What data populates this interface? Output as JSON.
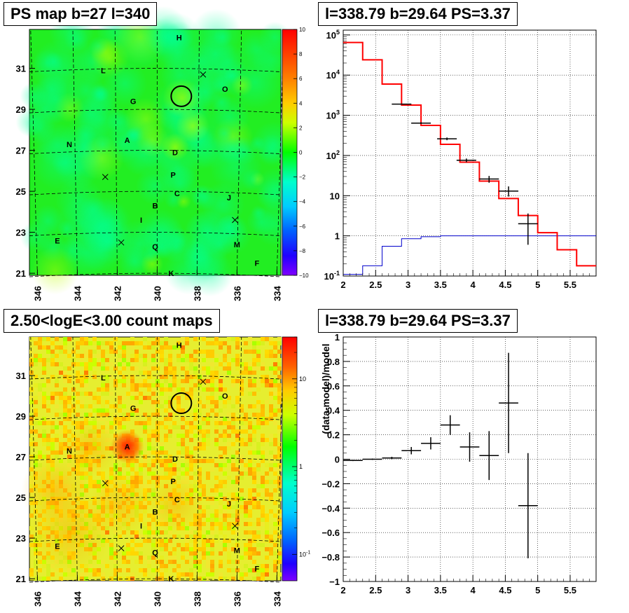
{
  "panels": {
    "top_left_title": "PS map b=27 l=340",
    "top_right_title": "l=338.79 b=29.64 PS=3.37",
    "bottom_left_title": "2.50<logE<3.00 count maps",
    "bottom_right_title": "l=338.79 b=29.64 PS=3.37"
  },
  "chart_data": [
    {
      "type": "heatmap",
      "title": "PS map b=27 l=340",
      "x_ticks": [
        "346",
        "344",
        "342",
        "340",
        "338",
        "336",
        "334"
      ],
      "y_ticks": [
        "21",
        "23",
        "25",
        "27",
        "29",
        "31"
      ],
      "xlim": [
        346.4,
        333.8
      ],
      "ylim": [
        20.9,
        32.9
      ],
      "colorbar_ticks": [
        "10",
        "8",
        "6",
        "4",
        "2",
        "0",
        "−2",
        "−4",
        "−6",
        "−8",
        "−10"
      ],
      "colorbar_range": [
        -10,
        10
      ],
      "source_labels": [
        {
          "text": "H",
          "l": 338.9,
          "b": 32.5
        },
        {
          "text": "L",
          "l": 342.7,
          "b": 30.9
        },
        {
          "text": "O",
          "l": 336.6,
          "b": 30.0
        },
        {
          "text": "G",
          "l": 341.2,
          "b": 29.4
        },
        {
          "text": "N",
          "l": 344.4,
          "b": 27.3
        },
        {
          "text": "A",
          "l": 341.5,
          "b": 27.5
        },
        {
          "text": "D",
          "l": 339.1,
          "b": 26.9
        },
        {
          "text": "P",
          "l": 339.2,
          "b": 25.8
        },
        {
          "text": "C",
          "l": 339.0,
          "b": 24.9
        },
        {
          "text": "J",
          "l": 336.4,
          "b": 24.7
        },
        {
          "text": "B",
          "l": 340.1,
          "b": 24.3
        },
        {
          "text": "I",
          "l": 340.8,
          "b": 23.6
        },
        {
          "text": "E",
          "l": 345.0,
          "b": 22.6
        },
        {
          "text": "Q",
          "l": 340.1,
          "b": 22.3
        },
        {
          "text": "M",
          "l": 336.0,
          "b": 22.4
        },
        {
          "text": "F",
          "l": 335.0,
          "b": 21.5
        },
        {
          "text": "K",
          "l": 339.3,
          "b": 21.0
        }
      ],
      "cross_markers": [
        {
          "l": 337.7,
          "b": 30.7
        },
        {
          "l": 342.6,
          "b": 25.7
        },
        {
          "l": 336.1,
          "b": 23.6
        },
        {
          "l": 341.8,
          "b": 22.5
        }
      ],
      "circle": {
        "l": 338.79,
        "b": 29.64
      }
    },
    {
      "type": "line",
      "title": "l=338.79 b=29.64 PS=3.37",
      "xlim": [
        2,
        5.9
      ],
      "ylim": [
        0.1,
        100000
      ],
      "y_scale": "log",
      "x_ticks": [
        "2",
        "2.5",
        "3",
        "3.5",
        "4",
        "4.5",
        "5",
        "5.5"
      ],
      "y_ticks": [
        "10^-1",
        "1",
        "10",
        "10^2",
        "10^3",
        "10^4",
        "10^5"
      ],
      "grid": true,
      "model_red": {
        "edges": [
          2.0,
          2.3,
          2.6,
          2.9,
          3.2,
          3.5,
          3.8,
          4.1,
          4.4,
          4.7,
          5.0,
          5.3,
          5.6,
          5.9
        ],
        "values": [
          65000,
          24000,
          6000,
          1800,
          560,
          190,
          68,
          23,
          8.5,
          3.2,
          1.2,
          0.45,
          0.18
        ]
      },
      "background_blue": {
        "edges": [
          2.0,
          2.3,
          2.6,
          2.9,
          3.2,
          3.5,
          3.8,
          4.1,
          4.4,
          4.7,
          5.0,
          5.3,
          5.6,
          5.9
        ],
        "values": [
          0.11,
          0.18,
          0.55,
          0.85,
          0.95,
          1.0,
          1.0,
          1.0,
          1.0,
          1.0,
          1.0,
          1.0,
          1.0
        ]
      },
      "data_points": [
        {
          "x": 2.9,
          "y": 1900,
          "lo": 1850,
          "hi": 1950
        },
        {
          "x": 3.2,
          "y": 640,
          "lo": 610,
          "hi": 670
        },
        {
          "x": 3.6,
          "y": 260,
          "lo": 240,
          "hi": 280
        },
        {
          "x": 3.9,
          "y": 76,
          "lo": 68,
          "hi": 84
        },
        {
          "x": 4.25,
          "y": 26,
          "lo": 21,
          "hi": 31
        },
        {
          "x": 4.55,
          "y": 13,
          "lo": 9.5,
          "hi": 17
        },
        {
          "x": 4.85,
          "y": 2.0,
          "lo": 0.6,
          "hi": 3.6
        }
      ]
    },
    {
      "type": "heatmap",
      "title": "2.50<logE<3.00 count maps",
      "x_ticks": [
        "346",
        "344",
        "342",
        "340",
        "338",
        "336",
        "334"
      ],
      "y_ticks": [
        "21",
        "23",
        "25",
        "27",
        "29",
        "31"
      ],
      "xlim": [
        346.4,
        333.8
      ],
      "ylim": [
        20.9,
        32.9
      ],
      "colorbar_scale": "log",
      "colorbar_ticks": [
        "10",
        "1",
        "10^-1"
      ],
      "colorbar_range": [
        0.05,
        30
      ]
    },
    {
      "type": "scatter",
      "title": "l=338.79 b=29.64 PS=3.37",
      "ylabel": "(data-model)/model",
      "xlim": [
        2,
        5.9
      ],
      "ylim": [
        -1,
        1
      ],
      "x_ticks": [
        "2",
        "2.5",
        "3",
        "3.5",
        "4",
        "4.5",
        "5",
        "5.5"
      ],
      "y_ticks": [
        "−1",
        "−0.8",
        "−0.6",
        "−0.4",
        "−0.2",
        "0",
        "0.2",
        "0.4",
        "0.6",
        "0.8",
        "1"
      ],
      "grid": true,
      "points": [
        {
          "x": 2.15,
          "y": -0.01,
          "xerr": 0.15,
          "yerr": 0.005
        },
        {
          "x": 2.45,
          "y": 0.0,
          "xerr": 0.15,
          "yerr": 0.005
        },
        {
          "x": 2.75,
          "y": 0.01,
          "xerr": 0.15,
          "yerr": 0.01
        },
        {
          "x": 3.05,
          "y": 0.07,
          "xerr": 0.15,
          "yerr": 0.03
        },
        {
          "x": 3.35,
          "y": 0.13,
          "xerr": 0.15,
          "yerr": 0.05
        },
        {
          "x": 3.65,
          "y": 0.28,
          "xerr": 0.15,
          "yerr": 0.08
        },
        {
          "x": 3.95,
          "y": 0.1,
          "xerr": 0.15,
          "yerr": 0.12
        },
        {
          "x": 4.25,
          "y": 0.03,
          "xerr": 0.15,
          "yerr": 0.2
        },
        {
          "x": 4.55,
          "y": 0.46,
          "xerr": 0.15,
          "yerr": 0.41
        },
        {
          "x": 4.85,
          "y": -0.38,
          "xerr": 0.15,
          "yerr": 0.43
        }
      ]
    }
  ]
}
